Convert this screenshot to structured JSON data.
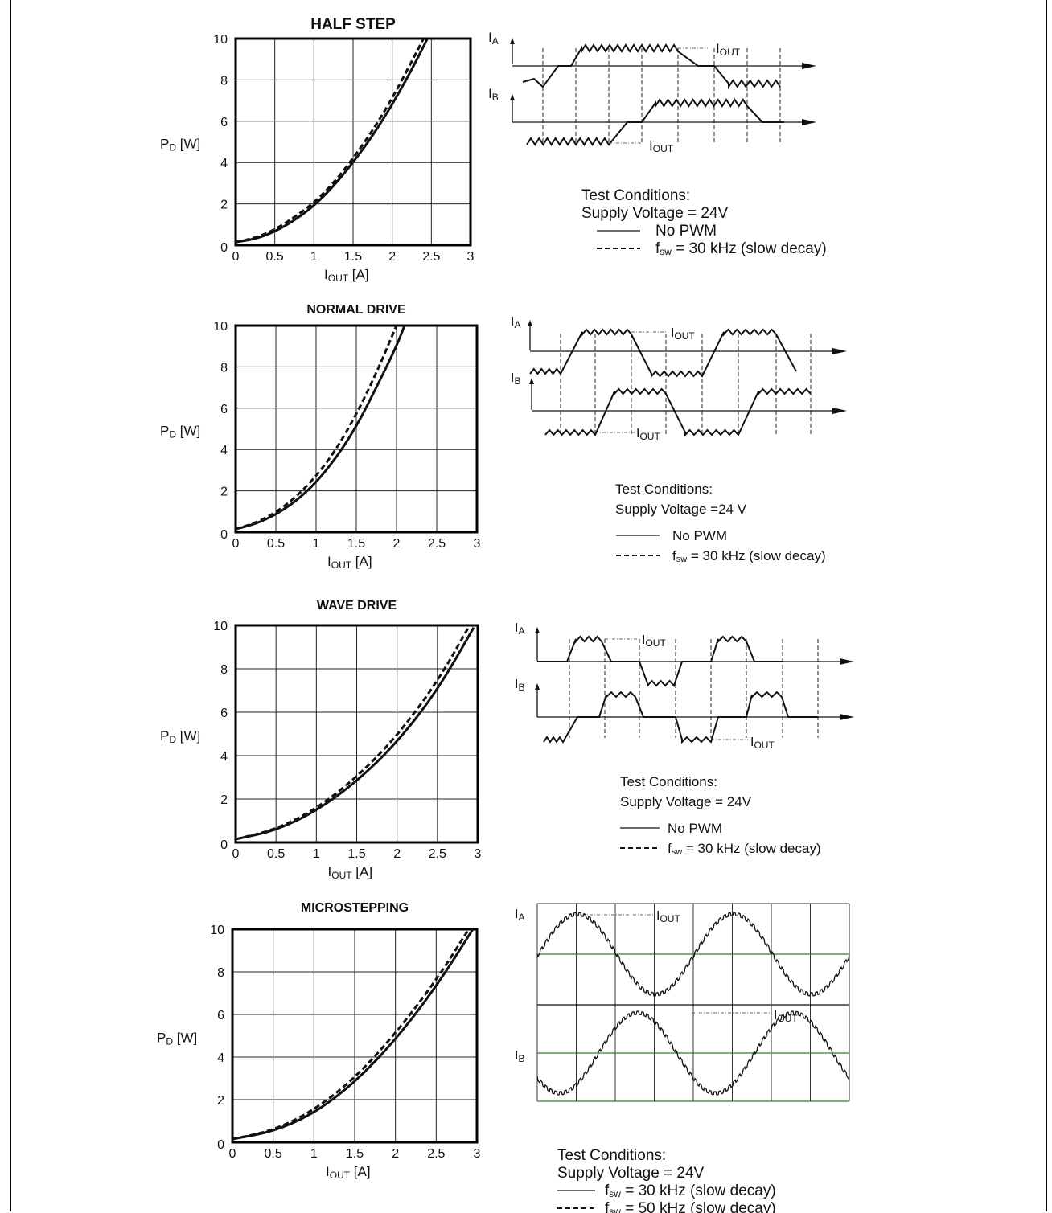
{
  "chart_data": [
    {
      "type": "line",
      "title": "HALF STEP",
      "xlabel": "I_OUT [A]",
      "ylabel": "P_D [W]",
      "xlim": [
        0,
        3
      ],
      "ylim": [
        0,
        10
      ],
      "x_ticks": [
        "0",
        "0.5",
        "1",
        "1.5",
        "2",
        "2.5",
        "3"
      ],
      "y_ticks": [
        "0",
        "2",
        "4",
        "6",
        "8",
        "10"
      ],
      "grid": true,
      "series": [
        {
          "name": "No PWM",
          "style": "solid",
          "x": [
            0,
            0.25,
            0.5,
            0.75,
            1.0,
            1.25,
            1.5,
            1.75,
            2.0,
            2.25,
            2.45
          ],
          "y": [
            0.15,
            0.3,
            0.65,
            1.2,
            1.9,
            2.85,
            4.0,
            5.3,
            6.8,
            8.5,
            10.0
          ]
        },
        {
          "name": "f_sw = 30 kHz (slow decay)",
          "style": "dashed",
          "x": [
            0,
            0.25,
            0.5,
            0.75,
            1.0,
            1.25,
            1.5,
            1.75,
            2.0,
            2.25,
            2.4
          ],
          "y": [
            0.15,
            0.35,
            0.75,
            1.35,
            2.05,
            3.0,
            4.2,
            5.55,
            7.1,
            8.9,
            10.0
          ]
        }
      ]
    },
    {
      "type": "line",
      "title": "NORMAL DRIVE",
      "xlabel": "I_OUT [A]",
      "ylabel": "P_D [W]",
      "xlim": [
        0,
        3
      ],
      "ylim": [
        0,
        10
      ],
      "x_ticks": [
        "0",
        "0.5",
        "1",
        "1.5",
        "2",
        "2.5",
        "3"
      ],
      "y_ticks": [
        "0",
        "2",
        "4",
        "6",
        "8",
        "10"
      ],
      "grid": true,
      "series": [
        {
          "name": "No PWM",
          "style": "solid",
          "x": [
            0,
            0.25,
            0.5,
            0.75,
            1.0,
            1.25,
            1.5,
            1.75,
            2.0,
            2.1
          ],
          "y": [
            0.15,
            0.4,
            0.85,
            1.5,
            2.4,
            3.6,
            5.1,
            7.0,
            9.0,
            10.0
          ]
        },
        {
          "name": "f_sw = 30 kHz (slow decay)",
          "style": "dashed",
          "x": [
            0,
            0.25,
            0.5,
            0.75,
            1.0,
            1.25,
            1.5,
            1.75,
            2.0
          ],
          "y": [
            0.15,
            0.45,
            0.95,
            1.7,
            2.7,
            4.0,
            5.7,
            7.7,
            10.0
          ]
        }
      ]
    },
    {
      "type": "line",
      "title": "WAVE DRIVE",
      "xlabel": "I_OUT [A]",
      "ylabel": "P_D [W]",
      "xlim": [
        0,
        3
      ],
      "ylim": [
        0,
        10
      ],
      "x_ticks": [
        "0",
        "0.5",
        "1",
        "1.5",
        "2",
        "2.5",
        "3"
      ],
      "y_ticks": [
        "0",
        "2",
        "4",
        "6",
        "8",
        "10"
      ],
      "grid": true,
      "series": [
        {
          "name": "No PWM",
          "style": "solid",
          "x": [
            0,
            0.5,
            1.0,
            1.5,
            2.0,
            2.5,
            2.95
          ],
          "y": [
            0.15,
            0.55,
            1.45,
            2.8,
            4.6,
            7.0,
            9.9
          ]
        },
        {
          "name": "f_sw = 30 kHz (slow decay)",
          "style": "dashed",
          "x": [
            0,
            0.5,
            1.0,
            1.5,
            2.0,
            2.5,
            2.9
          ],
          "y": [
            0.15,
            0.6,
            1.55,
            3.0,
            4.9,
            7.4,
            10.0
          ]
        }
      ]
    },
    {
      "type": "line",
      "title": "MICROSTEPPING",
      "xlabel": "I_OUT [A]",
      "ylabel": "P_D [W]",
      "xlim": [
        0,
        3
      ],
      "ylim": [
        0,
        10
      ],
      "x_ticks": [
        "0",
        "0.5",
        "1",
        "1.5",
        "2",
        "2.5",
        "3"
      ],
      "y_ticks": [
        "0",
        "2",
        "4",
        "6",
        "8",
        "10"
      ],
      "grid": true,
      "series": [
        {
          "name": "f_sw = 30 kHz (slow decay)",
          "style": "solid",
          "x": [
            0,
            0.5,
            1.0,
            1.5,
            2.0,
            2.5,
            2.95
          ],
          "y": [
            0.15,
            0.5,
            1.35,
            2.8,
            4.8,
            7.3,
            10.0
          ]
        },
        {
          "name": "f_sw = 50 kHz (slow decay)",
          "style": "dashed",
          "x": [
            0,
            0.5,
            1.0,
            1.5,
            2.0,
            2.5,
            2.9
          ],
          "y": [
            0.15,
            0.55,
            1.5,
            3.0,
            5.1,
            7.6,
            10.0
          ]
        }
      ]
    }
  ],
  "diagram_labels": {
    "ia": "I",
    "ia_sub": "A",
    "ib": "I",
    "ib_sub": "B",
    "iout": "I",
    "iout_sub": "OUT"
  },
  "test_conditions": [
    {
      "heading": "Test Conditions:",
      "supply": "Supply Voltage = 24V",
      "legend": [
        "No PWM",
        "f_sw = 30 kHz (slow decay)"
      ]
    },
    {
      "heading": "Test Conditions:",
      "supply": "Supply Voltage =24 V",
      "legend": [
        "No PWM",
        "f_sw = 30 kHz (slow decay)"
      ]
    },
    {
      "heading": "Test Conditions:",
      "supply": "Supply Voltage = 24V",
      "legend": [
        "No PWM",
        "f_sw = 30 kHz (slow decay)"
      ]
    },
    {
      "heading": "Test Conditions:",
      "supply": "Supply Voltage = 24V",
      "legend": [
        "f_sw = 30 kHz (slow decay)",
        "f_sw = 50 kHz (slow decay)"
      ]
    }
  ],
  "colors": {
    "line": "#111111",
    "grid": "#222222",
    "micro_grid": "#2e7d32"
  }
}
